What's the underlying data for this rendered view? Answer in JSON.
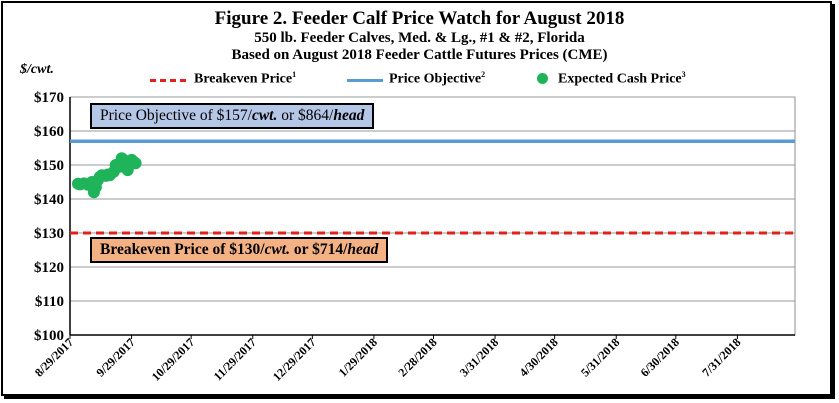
{
  "chart_data": {
    "type": "line",
    "title": "Figure 2. Feeder Calf Price Watch for August 2018",
    "subtitle": "550 lb. Feeder Calves, Med. & Lg., #1 & #2, Florida",
    "subtitle2": "Based on August 2018 Feeder Cattle Futures Prices (CME)",
    "ylabel": "$/cwt.",
    "ylim": [
      100,
      170
    ],
    "yticks": [
      "$100",
      "$110",
      "$120",
      "$130",
      "$140",
      "$150",
      "$160",
      "$170"
    ],
    "ytick_values": [
      100,
      110,
      120,
      130,
      140,
      150,
      160,
      170
    ],
    "xlabels": [
      "8/29/2017",
      "9/29/2017",
      "10/29/2017",
      "11/29/2017",
      "12/29/2017",
      "1/29/2018",
      "2/28/2018",
      "3/31/2018",
      "4/30/2018",
      "5/31/2018",
      "6/30/2018",
      "7/31/2018"
    ],
    "x_domain_days": [
      0,
      365
    ],
    "xtick_days": [
      0,
      31,
      61,
      92,
      122,
      153,
      183,
      214,
      244,
      275,
      305,
      336
    ],
    "legend": {
      "breakeven": "Breakeven Price",
      "breakeven_sup": "1",
      "objective": "Price Objective",
      "objective_sup": "2",
      "expected": "Expected Cash Price",
      "expected_sup": "3"
    },
    "series": [
      {
        "name": "Breakeven Price",
        "style": "dashed-line",
        "color": "#e0221b",
        "value": 130
      },
      {
        "name": "Price Objective",
        "style": "solid-line",
        "color": "#5b9bd5",
        "value": 157
      },
      {
        "name": "Expected Cash Price",
        "style": "points",
        "color": "#1fb35a",
        "points": [
          {
            "day": 0,
            "value": 144.5
          },
          {
            "day": 1,
            "value": 144.3
          },
          {
            "day": 3,
            "value": 144.6
          },
          {
            "day": 5,
            "value": 144.2
          },
          {
            "day": 7,
            "value": 145.0
          },
          {
            "day": 8,
            "value": 142.0
          },
          {
            "day": 9,
            "value": 143.5
          },
          {
            "day": 10,
            "value": 145.5
          },
          {
            "day": 11,
            "value": 146.5
          },
          {
            "day": 12,
            "value": 147.0
          },
          {
            "day": 14,
            "value": 146.8
          },
          {
            "day": 15,
            "value": 147.2
          },
          {
            "day": 16,
            "value": 147.0
          },
          {
            "day": 18,
            "value": 148.0
          },
          {
            "day": 19,
            "value": 150.0
          },
          {
            "day": 21,
            "value": 149.5
          },
          {
            "day": 22,
            "value": 152.0
          },
          {
            "day": 23,
            "value": 151.5
          },
          {
            "day": 24,
            "value": 151.0
          },
          {
            "day": 25,
            "value": 148.5
          },
          {
            "day": 26,
            "value": 150.0
          },
          {
            "day": 27,
            "value": 151.5
          },
          {
            "day": 28,
            "value": 151.0
          },
          {
            "day": 29,
            "value": 150.5
          }
        ]
      }
    ],
    "annotations": {
      "objective_prefix": "Price Objective of $157/",
      "objective_unit1": "cwt.",
      "objective_mid": " or ",
      "objective_value2": "$864/",
      "objective_unit2": "head",
      "breakeven_prefix": "Breakeven Price of $130/",
      "breakeven_unit1": "cwt.",
      "breakeven_mid": " or ",
      "breakeven_value2": "$714/",
      "breakeven_unit2": "head"
    }
  }
}
